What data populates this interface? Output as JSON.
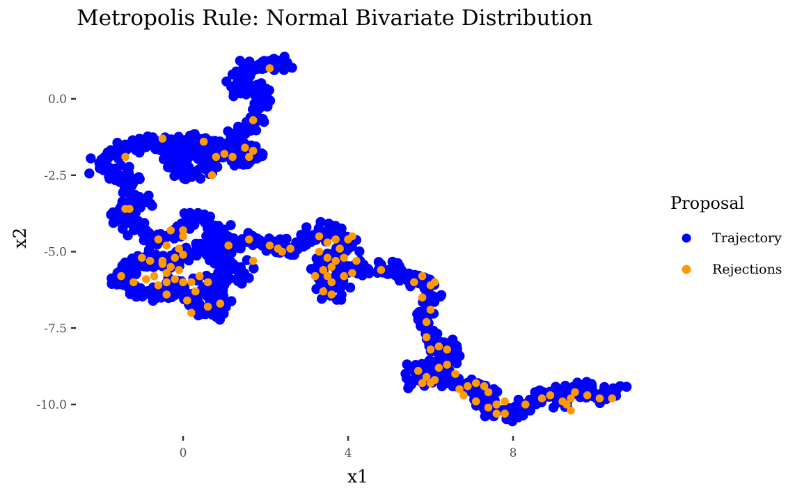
{
  "chart_data": {
    "type": "scatter",
    "title": "Metropolis Rule: Normal Bivariate Distribution",
    "xlabel": "x1",
    "ylabel": "x2",
    "xlim": [
      -2.5,
      10.8
    ],
    "ylim": [
      -10.9,
      1.4
    ],
    "xticks": [
      0,
      4,
      8
    ],
    "xtick_labels": [
      "0",
      "4",
      "8"
    ],
    "yticks": [
      0,
      -2.5,
      -5,
      -7.5,
      -10
    ],
    "ytick_labels": [
      "0.0",
      "-2.5",
      "-5.0",
      "-7.5",
      "-10.0"
    ],
    "grid": false,
    "legend": {
      "title": "Proposal",
      "position": "right",
      "entries": [
        "Trajectory",
        "Rejections"
      ]
    },
    "colors": {
      "Trajectory": "#0000ff",
      "Rejections": "#ff9900"
    },
    "series": [
      {
        "name": "Trajectory",
        "color": "#0000ff",
        "path": [
          [
            2.4,
            1.0
          ],
          [
            2.2,
            1.2
          ],
          [
            1.8,
            1.1
          ],
          [
            1.5,
            1.0
          ],
          [
            1.4,
            0.6
          ],
          [
            1.3,
            0.3
          ],
          [
            1.6,
            0.4
          ],
          [
            1.9,
            0.3
          ],
          [
            2.0,
            -0.2
          ],
          [
            1.8,
            -0.5
          ],
          [
            1.7,
            -0.9
          ],
          [
            1.5,
            -1.0
          ],
          [
            1.3,
            -1.2
          ],
          [
            1.2,
            -1.5
          ],
          [
            1.0,
            -1.7
          ],
          [
            1.2,
            -1.9
          ],
          [
            1.5,
            -1.7
          ],
          [
            1.8,
            -1.8
          ],
          [
            1.6,
            -2.0
          ],
          [
            1.2,
            -2.0
          ],
          [
            0.9,
            -1.8
          ],
          [
            0.7,
            -1.5
          ],
          [
            0.4,
            -1.4
          ],
          [
            0.1,
            -1.4
          ],
          [
            -0.2,
            -1.6
          ],
          [
            -0.3,
            -2.0
          ],
          [
            -0.1,
            -2.3
          ],
          [
            0.2,
            -2.4
          ],
          [
            0.5,
            -2.2
          ],
          [
            0.7,
            -2.0
          ],
          [
            0.5,
            -1.7
          ],
          [
            0.2,
            -1.7
          ],
          [
            0.0,
            -1.9
          ],
          [
            -0.3,
            -1.6
          ],
          [
            -0.6,
            -1.5
          ],
          [
            -1.0,
            -1.5
          ],
          [
            -1.3,
            -1.6
          ],
          [
            -1.6,
            -1.7
          ],
          [
            -1.8,
            -2.0
          ],
          [
            -2.0,
            -2.2
          ],
          [
            -1.7,
            -2.4
          ],
          [
            -1.4,
            -2.5
          ],
          [
            -1.3,
            -2.8
          ],
          [
            -1.2,
            -3.2
          ],
          [
            -1.0,
            -3.4
          ],
          [
            -1.3,
            -3.6
          ],
          [
            -1.6,
            -3.8
          ],
          [
            -1.4,
            -4.0
          ],
          [
            -1.1,
            -4.2
          ],
          [
            -0.8,
            -4.4
          ],
          [
            -0.6,
            -4.7
          ],
          [
            -0.2,
            -4.3
          ],
          [
            0.1,
            -4.0
          ],
          [
            0.4,
            -3.9
          ],
          [
            0.7,
            -4.1
          ],
          [
            0.9,
            -4.4
          ],
          [
            0.6,
            -4.7
          ],
          [
            0.3,
            -4.9
          ],
          [
            0.0,
            -5.2
          ],
          [
            -0.3,
            -5.4
          ],
          [
            -0.7,
            -5.3
          ],
          [
            -1.1,
            -5.4
          ],
          [
            -1.4,
            -5.6
          ],
          [
            -1.6,
            -5.9
          ],
          [
            -1.3,
            -6.2
          ],
          [
            -0.9,
            -6.4
          ],
          [
            -0.5,
            -6.3
          ],
          [
            -0.3,
            -6.0
          ],
          [
            0.0,
            -6.2
          ],
          [
            0.2,
            -6.6
          ],
          [
            0.4,
            -6.9
          ],
          [
            0.8,
            -7.0
          ],
          [
            1.0,
            -6.7
          ],
          [
            0.7,
            -6.4
          ],
          [
            0.5,
            -6.1
          ],
          [
            0.8,
            -5.9
          ],
          [
            1.2,
            -6.0
          ],
          [
            1.5,
            -5.8
          ],
          [
            1.3,
            -5.5
          ],
          [
            0.9,
            -5.4
          ],
          [
            0.6,
            -5.1
          ],
          [
            0.9,
            -4.8
          ],
          [
            1.3,
            -4.7
          ],
          [
            1.7,
            -4.6
          ],
          [
            2.0,
            -4.8
          ],
          [
            2.3,
            -4.8
          ],
          [
            2.6,
            -4.9
          ],
          [
            2.9,
            -4.7
          ],
          [
            3.2,
            -4.4
          ],
          [
            3.5,
            -4.3
          ],
          [
            3.8,
            -4.5
          ],
          [
            4.0,
            -4.8
          ],
          [
            3.7,
            -5.1
          ],
          [
            3.4,
            -5.3
          ],
          [
            3.3,
            -5.7
          ],
          [
            3.5,
            -6.0
          ],
          [
            3.8,
            -5.9
          ],
          [
            3.6,
            -6.3
          ],
          [
            3.9,
            -5.6
          ],
          [
            4.3,
            -5.5
          ],
          [
            4.7,
            -5.6
          ],
          [
            5.0,
            -5.6
          ],
          [
            5.3,
            -5.8
          ],
          [
            5.6,
            -5.9
          ],
          [
            5.9,
            -6.0
          ],
          [
            6.0,
            -6.4
          ],
          [
            5.9,
            -6.8
          ],
          [
            5.8,
            -7.2
          ],
          [
            5.9,
            -7.6
          ],
          [
            6.0,
            -8.0
          ],
          [
            6.3,
            -8.1
          ],
          [
            6.6,
            -8.2
          ],
          [
            6.4,
            -8.5
          ],
          [
            6.2,
            -8.8
          ],
          [
            5.9,
            -8.9
          ],
          [
            5.6,
            -8.9
          ],
          [
            5.7,
            -9.2
          ],
          [
            6.0,
            -9.1
          ],
          [
            6.3,
            -8.9
          ],
          [
            6.5,
            -9.2
          ],
          [
            6.8,
            -9.4
          ],
          [
            7.1,
            -9.5
          ],
          [
            7.4,
            -9.6
          ],
          [
            7.3,
            -9.9
          ],
          [
            7.5,
            -10.2
          ],
          [
            7.8,
            -10.1
          ],
          [
            8.0,
            -10.3
          ],
          [
            8.3,
            -10.1
          ],
          [
            8.6,
            -9.8
          ],
          [
            8.9,
            -9.6
          ],
          [
            9.2,
            -9.9
          ],
          [
            9.5,
            -9.6
          ],
          [
            9.7,
            -9.5
          ],
          [
            10.0,
            -9.6
          ],
          [
            10.2,
            -9.7
          ],
          [
            10.5,
            -9.6
          ]
        ]
      },
      {
        "name": "Rejections",
        "color": "#ff9900",
        "points": [
          [
            2.1,
            1.0
          ],
          [
            1.7,
            -0.7
          ],
          [
            -0.5,
            -1.3
          ],
          [
            0.5,
            -1.4
          ],
          [
            0.8,
            -1.9
          ],
          [
            0.7,
            -2.5
          ],
          [
            1.0,
            -1.8
          ],
          [
            1.2,
            -1.9
          ],
          [
            1.5,
            -1.6
          ],
          [
            1.7,
            -1.7
          ],
          [
            1.6,
            -1.9
          ],
          [
            -1.4,
            -1.9
          ],
          [
            -1.4,
            -3.6
          ],
          [
            -1.3,
            -3.6
          ],
          [
            -0.3,
            -4.3
          ],
          [
            0.0,
            -4.3
          ],
          [
            0.0,
            -4.5
          ],
          [
            -0.6,
            -4.6
          ],
          [
            -0.4,
            -4.8
          ],
          [
            -0.1,
            -4.9
          ],
          [
            0.0,
            -5.1
          ],
          [
            -0.2,
            -5.2
          ],
          [
            -0.5,
            -5.3
          ],
          [
            -0.8,
            -5.3
          ],
          [
            -1.0,
            -5.2
          ],
          [
            -0.5,
            -5.4
          ],
          [
            -0.3,
            -5.5
          ],
          [
            -0.1,
            -5.6
          ],
          [
            -0.4,
            -5.7
          ],
          [
            -0.7,
            -5.8
          ],
          [
            -0.9,
            -5.9
          ],
          [
            -1.2,
            -6.0
          ],
          [
            -1.5,
            -5.8
          ],
          [
            -0.6,
            -6.1
          ],
          [
            -0.4,
            -6.0
          ],
          [
            -0.2,
            -5.9
          ],
          [
            0.0,
            -6.0
          ],
          [
            0.2,
            -6.0
          ],
          [
            0.4,
            -5.8
          ],
          [
            0.6,
            -6.0
          ],
          [
            0.3,
            -6.3
          ],
          [
            0.1,
            -6.6
          ],
          [
            0.2,
            -7.0
          ],
          [
            0.6,
            -6.8
          ],
          [
            0.9,
            -6.7
          ],
          [
            -0.4,
            -6.4
          ],
          [
            1.1,
            -4.8
          ],
          [
            1.6,
            -4.6
          ],
          [
            1.7,
            -5.3
          ],
          [
            2.1,
            -4.8
          ],
          [
            2.3,
            -4.9
          ],
          [
            2.4,
            -5.0
          ],
          [
            2.6,
            -4.9
          ],
          [
            3.3,
            -4.5
          ],
          [
            3.5,
            -4.7
          ],
          [
            3.7,
            -4.6
          ],
          [
            3.8,
            -4.9
          ],
          [
            4.0,
            -4.6
          ],
          [
            4.1,
            -4.5
          ],
          [
            3.3,
            -5.0
          ],
          [
            3.5,
            -5.2
          ],
          [
            3.6,
            -5.5
          ],
          [
            3.7,
            -5.3
          ],
          [
            3.9,
            -5.2
          ],
          [
            3.4,
            -5.6
          ],
          [
            3.5,
            -5.8
          ],
          [
            3.6,
            -6.0
          ],
          [
            3.9,
            -5.8
          ],
          [
            4.1,
            -5.7
          ],
          [
            4.2,
            -5.3
          ],
          [
            3.2,
            -5.8
          ],
          [
            3.4,
            -6.3
          ],
          [
            3.6,
            -6.4
          ],
          [
            4.8,
            -5.6
          ],
          [
            5.6,
            -6.0
          ],
          [
            5.8,
            -5.8
          ],
          [
            6.0,
            -6.1
          ],
          [
            6.1,
            -6.0
          ],
          [
            5.8,
            -6.5
          ],
          [
            6.0,
            -6.9
          ],
          [
            5.9,
            -7.3
          ],
          [
            5.9,
            -7.8
          ],
          [
            6.0,
            -8.2
          ],
          [
            6.2,
            -8.1
          ],
          [
            6.4,
            -8.2
          ],
          [
            5.7,
            -8.9
          ],
          [
            5.9,
            -9.1
          ],
          [
            6.1,
            -9.2
          ],
          [
            6.2,
            -8.8
          ],
          [
            6.4,
            -8.7
          ],
          [
            5.8,
            -9.3
          ],
          [
            6.0,
            -9.3
          ],
          [
            6.6,
            -9.0
          ],
          [
            6.7,
            -9.5
          ],
          [
            6.9,
            -9.4
          ],
          [
            7.1,
            -9.3
          ],
          [
            7.3,
            -9.4
          ],
          [
            7.4,
            -9.6
          ],
          [
            6.8,
            -9.7
          ],
          [
            7.1,
            -9.9
          ],
          [
            7.4,
            -10.1
          ],
          [
            7.6,
            -10.0
          ],
          [
            7.8,
            -9.9
          ],
          [
            7.6,
            -10.3
          ],
          [
            7.8,
            -10.3
          ],
          [
            8.3,
            -10.0
          ],
          [
            8.7,
            -9.8
          ],
          [
            8.9,
            -9.7
          ],
          [
            9.2,
            -9.9
          ],
          [
            9.3,
            -10.0
          ],
          [
            9.4,
            -9.8
          ],
          [
            9.5,
            -9.6
          ],
          [
            9.4,
            -10.2
          ],
          [
            9.8,
            -9.7
          ],
          [
            10.1,
            -9.8
          ],
          [
            10.4,
            -9.8
          ]
        ]
      }
    ]
  }
}
